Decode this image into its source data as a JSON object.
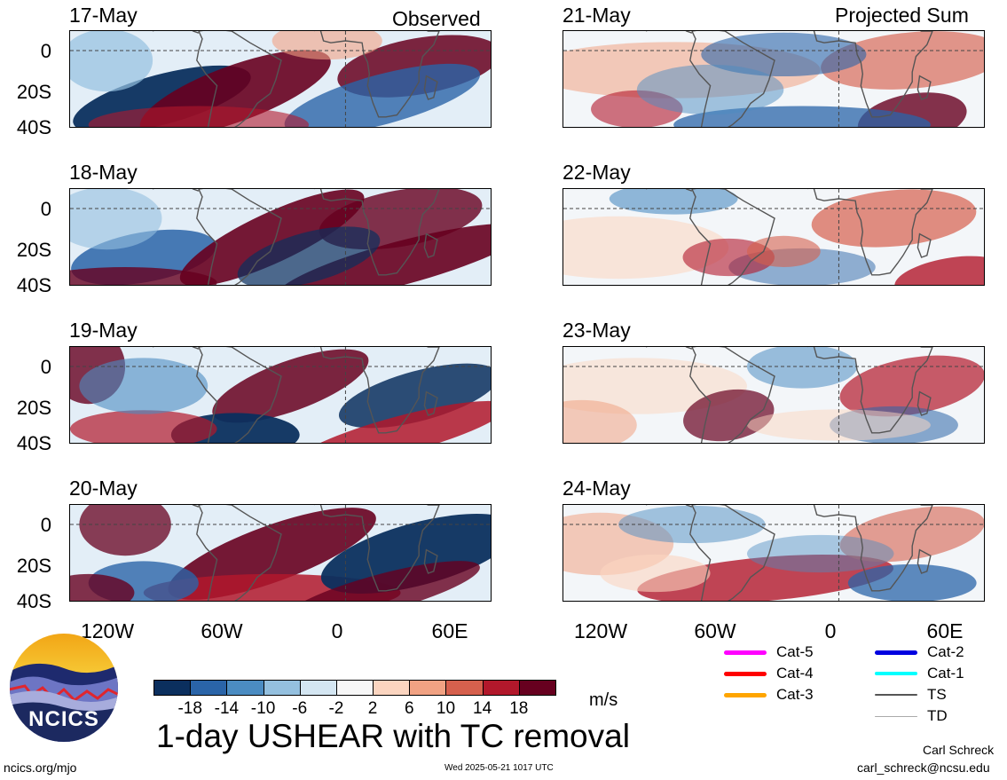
{
  "chart_data": {
    "type": "heatmap",
    "title": "1-day USHEAR with TC removal",
    "columns": [
      {
        "title": "Observed",
        "dates": [
          "17-May",
          "18-May",
          "19-May",
          "20-May"
        ]
      },
      {
        "title": "Projected Sum",
        "dates": [
          "21-May",
          "22-May",
          "23-May",
          "24-May"
        ]
      }
    ],
    "y_ticks": [
      "0",
      "20S",
      "40S"
    ],
    "x_ticks": [
      "120W",
      "60W",
      "0",
      "60E"
    ],
    "xlim": [
      "150W",
      "80E"
    ],
    "ylim": [
      "40S",
      "10N"
    ],
    "colorbar": {
      "ticks": [
        "-18",
        "-14",
        "-10",
        "-6",
        "-2",
        "2",
        "6",
        "10",
        "14",
        "18"
      ],
      "colors": [
        "#0b2f5e",
        "#2a64a8",
        "#4b8cc2",
        "#94c0df",
        "#d4e6f2",
        "#f7f7f7",
        "#fbd5c0",
        "#f1a283",
        "#d6604d",
        "#b2182b",
        "#67001f"
      ],
      "units": "m/s"
    },
    "tc_legend": [
      {
        "label": "Cat-5",
        "color": "#ff00ff",
        "width": 5
      },
      {
        "label": "Cat-2",
        "color": "#0000e0",
        "width": 5
      },
      {
        "label": "Cat-4",
        "color": "#ff0000",
        "width": 5
      },
      {
        "label": "Cat-1",
        "color": "#00ffff",
        "width": 4
      },
      {
        "label": "Cat-3",
        "color": "#ffa500",
        "width": 5
      },
      {
        "label": "TS",
        "color": "#555555",
        "width": 2
      },
      {
        "label": "TD",
        "color": "#aaaaaa",
        "width": 1
      }
    ]
  },
  "logo": {
    "text": "NCICS"
  },
  "footer": {
    "site": "ncics.org/mjo",
    "timestamp": "Wed 2025-05-21 1017 UTC",
    "author": "Carl Schreck",
    "email": "carl_schreck@ncsu.edu"
  }
}
